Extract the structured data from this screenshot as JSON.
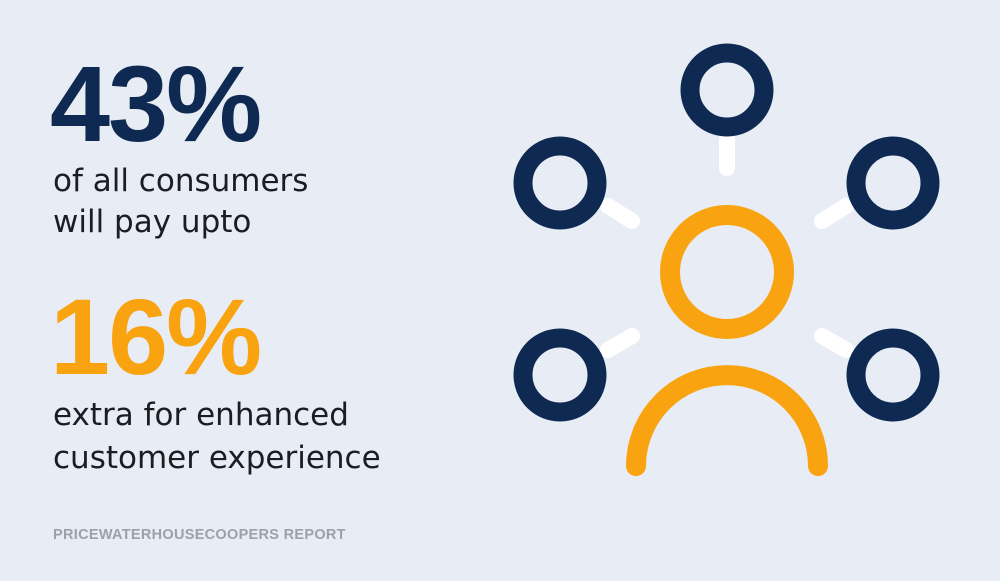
{
  "stats": [
    {
      "value": "43%",
      "lines": [
        "of all consumers",
        "will pay upto"
      ]
    },
    {
      "value": "16%",
      "lines": [
        "extra for enhanced",
        "customer experience"
      ]
    }
  ],
  "source": "PRICEWATERHOUSECOOPERS REPORT"
}
